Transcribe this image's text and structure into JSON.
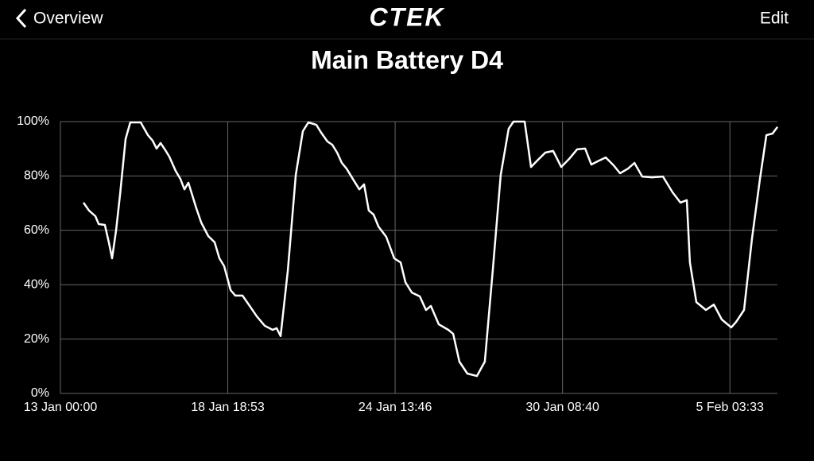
{
  "header": {
    "back": "Overview",
    "logo": "CTEK",
    "action": "Edit"
  },
  "chart_data": {
    "type": "line",
    "title": "Main Battery D4",
    "x": [
      19.1,
      23.7,
      29.0,
      31.7,
      36.9,
      40.2,
      42.9,
      46.2,
      49.5,
      54.1,
      58.0,
      66.6,
      72.6,
      76.5,
      79.8,
      83.1,
      87.1,
      90.4,
      95.6,
      99.6,
      102.9,
      106.2,
      112.8,
      116.8,
      122.7,
      128.0,
      131.9,
      135.9,
      141.2,
      145.1,
      151.1,
      156.3,
      162.9,
      169.5,
      176.1,
      179.4,
      182.7,
      188.7,
      195.3,
      201.2,
      205.8,
      212.4,
      216.4,
      221.6,
      225.6,
      229.6,
      233.5,
      237.5,
      242.7,
      248.0,
      252.0,
      255.9,
      259.9,
      263.9,
      270.4,
      277.0,
      282.3,
      286.3,
      291.6,
      298.2,
      303.4,
      307.4,
      314.0,
      321.9,
      325.9,
      331.1,
      337.7,
      345.6,
      352.2,
      358.8,
      365.4,
      372.0,
      376.0,
      385.2,
      390.5,
      395.8,
      402.4,
      408.9,
      415.6,
      422.2,
      428.8,
      435.4,
      440.6,
      445.9,
      452.5,
      459.1,
      464.4,
      471.0,
      476.3,
      482.8,
      490.8,
      500.0,
      507.9,
      514.5,
      519.8,
      522.4,
      527.7,
      535.6,
      542.2,
      548.8,
      556.7,
      560.7,
      567.3,
      573.9,
      580.5,
      585.8,
      591.0,
      595.0
    ],
    "series": [
      {
        "color": "#ffffff",
        "values": [
          70.2,
          67.3,
          65.2,
          62.3,
          62.0,
          55.6,
          49.7,
          59.9,
          73.1,
          93.6,
          99.7,
          99.7,
          95.0,
          93.0,
          90.1,
          92.1,
          89.5,
          87.1,
          81.9,
          78.9,
          75.1,
          77.5,
          68.1,
          62.9,
          57.9,
          55.6,
          49.7,
          46.8,
          38.0,
          36.0,
          36.0,
          32.7,
          28.4,
          24.9,
          23.4,
          24.0,
          21.1,
          45.3,
          80.4,
          96.5,
          99.7,
          98.8,
          95.9,
          92.7,
          91.5,
          88.6,
          84.8,
          82.7,
          78.9,
          75.1,
          76.9,
          67.3,
          65.8,
          61.4,
          57.6,
          49.7,
          48.2,
          40.9,
          37.1,
          35.7,
          30.7,
          32.2,
          25.4,
          23.4,
          21.9,
          11.7,
          7.3,
          6.4,
          11.7,
          45.3,
          80.4,
          97.4,
          100,
          100,
          83.3,
          85.7,
          88.6,
          89.2,
          83.3,
          86.3,
          89.8,
          90.1,
          84.2,
          85.4,
          86.8,
          83.9,
          81.0,
          82.7,
          84.8,
          79.8,
          79.5,
          79.8,
          74.0,
          70.2,
          71.1,
          48.2,
          33.6,
          30.7,
          32.7,
          27.2,
          24.3,
          26.3,
          30.7,
          57.0,
          78.9,
          95.0,
          95.6,
          98.0
        ]
      }
    ],
    "xlim": [
      0,
      595
    ],
    "xticks": [
      {
        "value": 0,
        "label": "13 Jan 00:00"
      },
      {
        "value": 138.88,
        "label": "18 Jan 18:53"
      },
      {
        "value": 277.77,
        "label": "24 Jan 13:46"
      },
      {
        "value": 416.67,
        "label": "30 Jan 08:40"
      },
      {
        "value": 555.55,
        "label": "5 Feb 03:33"
      }
    ],
    "ylim": [
      0,
      100
    ],
    "yticks": [
      {
        "value": 0,
        "label": "0%"
      },
      {
        "value": 20,
        "label": "20%"
      },
      {
        "value": 40,
        "label": "40%"
      },
      {
        "value": 60,
        "label": "60%"
      },
      {
        "value": 80,
        "label": "80%"
      },
      {
        "value": 100,
        "label": "100%"
      }
    ],
    "grid": true
  }
}
